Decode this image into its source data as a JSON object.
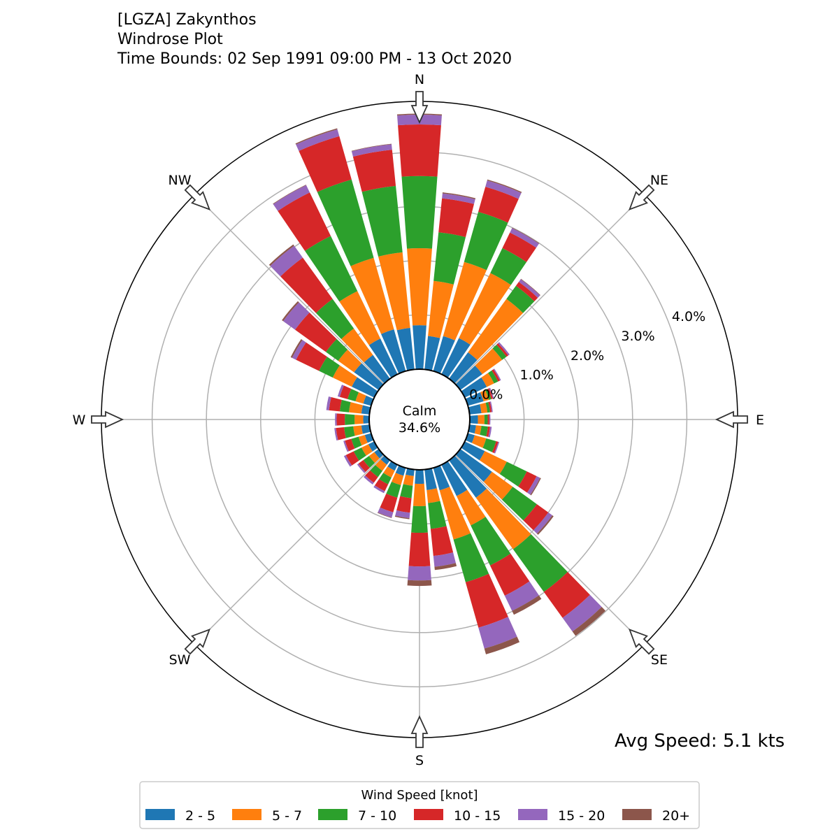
{
  "chart_data": {
    "type": "windrose",
    "title_lines": [
      "[LGZA] Zakynthos",
      "Windrose Plot",
      "Time Bounds: 02 Sep 1991 09:00 PM - 13 Oct 2020"
    ],
    "calm_label": "Calm",
    "calm_value": "34.6%",
    "avg_speed_label": "Avg Speed: 5.1 kts",
    "radial_ticks": [
      0,
      1,
      2,
      3,
      4
    ],
    "radial_tick_labels": [
      "0.0%",
      "1.0%",
      "2.0%",
      "3.0%",
      "4.0%"
    ],
    "radial_max": 4.93,
    "compass_labels": [
      "N",
      "NE",
      "E",
      "SE",
      "S",
      "SW",
      "W",
      "NW"
    ],
    "legend": {
      "title": "Wind Speed [knot]",
      "placement": "bottom-center",
      "bins": [
        "2 - 5",
        "5 - 7",
        "7 - 10",
        "10 - 15",
        "15 - 20",
        "20+"
      ],
      "colors": [
        "#1f77b4",
        "#ff7f0e",
        "#2ca02c",
        "#d62728",
        "#9467bd",
        "#8c564b"
      ]
    },
    "units": "percent frequency",
    "directions": [
      0,
      10,
      20,
      30,
      40,
      50,
      60,
      70,
      80,
      90,
      100,
      110,
      120,
      130,
      140,
      150,
      160,
      170,
      180,
      190,
      200,
      210,
      220,
      230,
      240,
      250,
      260,
      270,
      280,
      290,
      300,
      310,
      320,
      330,
      340,
      350
    ],
    "series": [
      {
        "name": "2 - 5",
        "values": [
          0.81,
          0.62,
          0.67,
          0.74,
          0.6,
          0.5,
          0.45,
          0.3,
          0.22,
          0.15,
          0.12,
          0.13,
          0.41,
          0.72,
          0.85,
          0.64,
          0.43,
          0.38,
          0.26,
          0.12,
          0.15,
          0.12,
          0.1,
          0.1,
          0.12,
          0.12,
          0.15,
          0.11,
          0.15,
          0.15,
          0.46,
          0.56,
          0.54,
          0.73,
          0.8,
          0.77
        ]
      },
      {
        "name": "5 - 7",
        "values": [
          1.42,
          1.02,
          1.42,
          1.33,
          1.21,
          0.45,
          0.15,
          0.1,
          0.11,
          0.12,
          0.1,
          0.22,
          0.45,
          0.47,
          1.17,
          0.6,
          0.94,
          0.24,
          0.41,
          0.18,
          0.18,
          0.14,
          0.14,
          0.12,
          0.14,
          0.12,
          0.15,
          0.16,
          0.23,
          0.15,
          0.39,
          0.36,
          0.6,
          0.97,
          1.37,
          1.4
        ]
      },
      {
        "name": "7 - 10",
        "values": [
          1.33,
          0.9,
          0.96,
          0.51,
          0.3,
          0.1,
          0.08,
          0.05,
          0.05,
          0.06,
          0.12,
          0.19,
          0.41,
          0.55,
          0.97,
          0.82,
          0.82,
          0.48,
          0.49,
          0.23,
          0.24,
          0.14,
          0.14,
          0.13,
          0.16,
          0.14,
          0.17,
          0.18,
          0.17,
          0.15,
          0.28,
          0.28,
          0.67,
          1.13,
          1.5,
          1.23
        ]
      },
      {
        "name": "10 - 15",
        "values": [
          0.95,
          0.63,
          0.48,
          0.32,
          0.09,
          0.04,
          0.04,
          0.03,
          0.03,
          0.03,
          0.04,
          0.04,
          0.2,
          0.26,
          0.59,
          0.62,
          0.87,
          0.5,
          0.62,
          0.27,
          0.28,
          0.14,
          0.13,
          0.11,
          0.16,
          0.12,
          0.15,
          0.15,
          0.2,
          0.15,
          0.47,
          0.7,
          0.94,
          0.89,
          0.83,
          0.67
        ]
      },
      {
        "name": "15 - 20",
        "values": [
          0.18,
          0.09,
          0.12,
          0.09,
          0.06,
          0.03,
          0.02,
          0.02,
          0.02,
          0.02,
          0.03,
          0.02,
          0.07,
          0.09,
          0.31,
          0.31,
          0.4,
          0.2,
          0.26,
          0.1,
          0.1,
          0.04,
          0.04,
          0.03,
          0.04,
          0.03,
          0.03,
          0.03,
          0.05,
          0.04,
          0.08,
          0.27,
          0.27,
          0.15,
          0.13,
          0.1
        ]
      },
      {
        "name": "20+",
        "values": [
          0.02,
          0.02,
          0.02,
          0.01,
          0.01,
          0,
          0,
          0,
          0,
          0,
          0,
          0,
          0.02,
          0.03,
          0.1,
          0.08,
          0.11,
          0.06,
          0.1,
          0.02,
          0.01,
          0,
          0,
          0,
          0,
          0,
          0,
          0,
          0,
          0,
          0.03,
          0.03,
          0.03,
          0.01,
          0.02,
          0.01
        ]
      }
    ]
  }
}
